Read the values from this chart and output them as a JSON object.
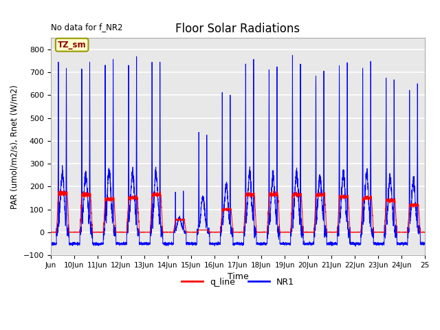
{
  "title": "Floor Solar Radiations",
  "xlabel": "Time",
  "ylabel": "PAR (umol/m2/s), Rnet (W/m2)",
  "ylim": [
    -100,
    850
  ],
  "yticks": [
    -100,
    0,
    100,
    200,
    300,
    400,
    500,
    600,
    700,
    800
  ],
  "note": "No data for f_NR2",
  "legend_label_box": "TZ_sm",
  "legend_entries": [
    "q_line",
    "NR1"
  ],
  "legend_colors": [
    "#ff0000",
    "#0000ff"
  ],
  "box_facecolor": "#ffffcc",
  "box_edgecolor": "#999900",
  "axes_facecolor": "#e8e8e8",
  "grid_color": "#ffffff",
  "start_day": 9,
  "num_days": 16,
  "NR1_day_peaks": [
    735,
    730,
    760,
    750,
    750,
    180,
    440,
    595,
    740,
    710,
    745,
    705,
    735,
    740,
    675,
    640
  ],
  "q_day_peaks": [
    170,
    165,
    145,
    150,
    165,
    55,
    10,
    100,
    165,
    165,
    165,
    165,
    155,
    150,
    140,
    120
  ],
  "night_NR1": -50,
  "night_q": 0
}
